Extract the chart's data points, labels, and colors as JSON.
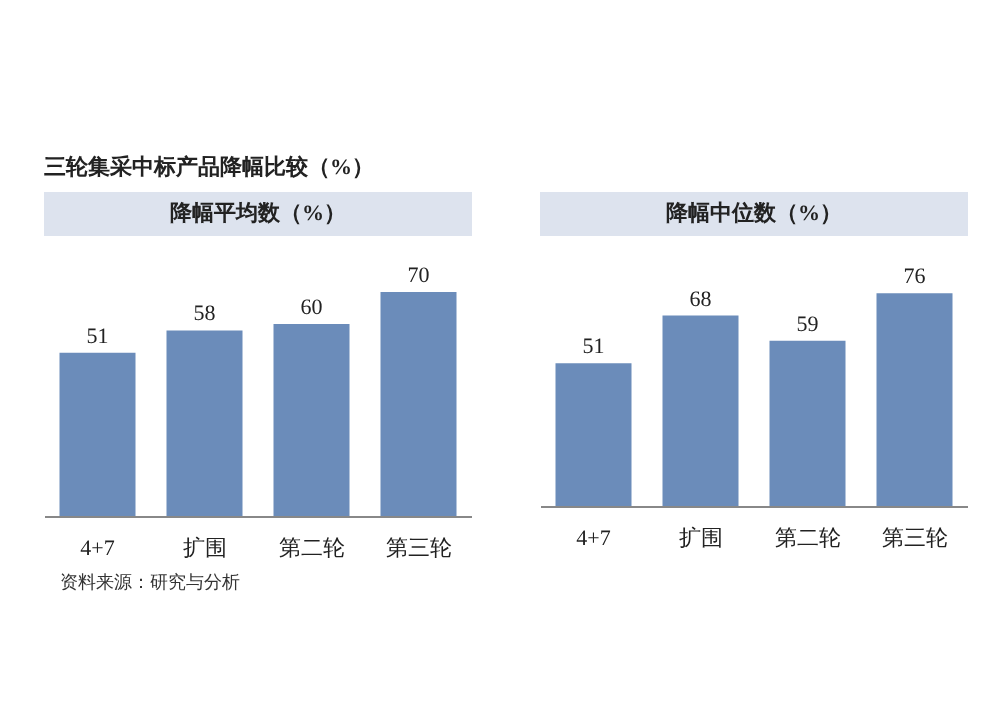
{
  "chart_data": [
    {
      "type": "bar",
      "title": "三轮集采中标产品降幅比较（%）",
      "subtitle": "降幅平均数（%）",
      "categories": [
        "4+7",
        "扩围",
        "第二轮",
        "第三轮"
      ],
      "values": [
        51,
        58,
        60,
        70
      ],
      "color": "#6b8cba",
      "data_labels": true,
      "annotations": [
        "资料来源：研究与分析"
      ]
    },
    {
      "type": "bar",
      "subtitle": "降幅中位数（%）",
      "categories": [
        "4+7",
        "扩围",
        "第二轮",
        "第三轮"
      ],
      "values": [
        51,
        68,
        59,
        76
      ],
      "color": "#6b8cba",
      "data_labels": true
    }
  ]
}
